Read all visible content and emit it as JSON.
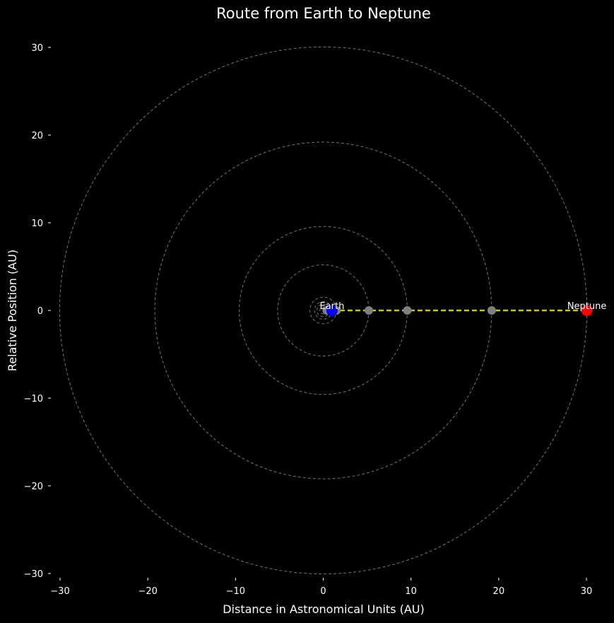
{
  "chart_data": {
    "type": "scatter",
    "title": "Route from Earth to Neptune",
    "xlabel": "Distance in Astronomical Units (AU)",
    "ylabel": "Relative Position (AU)",
    "xlim": [
      -30,
      30
    ],
    "ylim": [
      -30,
      30
    ],
    "xticks": [
      -30,
      -20,
      -10,
      0,
      10,
      20,
      30
    ],
    "yticks": [
      -30,
      -20,
      -10,
      0,
      10,
      20,
      30
    ],
    "xtick_labels": [
      "−30",
      "−20",
      "−10",
      "0",
      "10",
      "20",
      "30"
    ],
    "ytick_labels": [
      "−30",
      "−20",
      "−10",
      "0",
      "10",
      "20",
      "30"
    ],
    "grid": false,
    "background": "#000000",
    "orbits": {
      "radii": [
        0.39,
        0.72,
        1.0,
        1.52,
        5.2,
        9.58,
        19.2,
        30.05
      ],
      "color": "#808080",
      "style": "dashed"
    },
    "planets": {
      "x": [
        0.39,
        0.72,
        1.52,
        5.2,
        9.58,
        19.2
      ],
      "y": [
        0,
        0,
        0,
        0,
        0,
        0
      ],
      "color": "#808080"
    },
    "route": {
      "x": [
        1.0,
        30.05
      ],
      "y": [
        0,
        0
      ],
      "color": "#c8c81e",
      "style": "dashed"
    },
    "start": {
      "x": 1.0,
      "y": 0,
      "label": "Earth",
      "color": "#0000ff"
    },
    "end": {
      "x": 30.05,
      "y": 0,
      "label": "Neptune",
      "color": "#ff0000"
    }
  }
}
